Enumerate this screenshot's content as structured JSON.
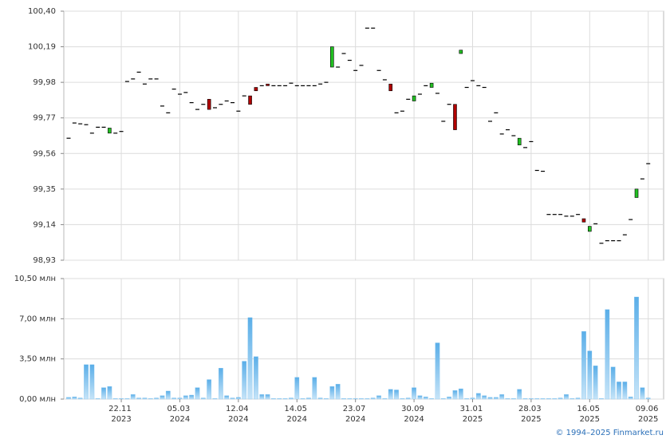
{
  "chart_data": [
    {
      "type": "candlestick",
      "open": [
        99.65,
        99.74,
        99.735,
        99.73,
        99.68,
        99.715,
        99.715,
        99.68,
        99.68,
        99.69,
        99.985,
        100.0,
        100.04,
        99.97,
        100.0,
        100.0,
        99.84,
        99.8,
        99.94,
        99.91,
        99.92,
        99.86,
        99.82,
        99.85,
        99.88,
        99.83,
        99.85,
        99.87,
        99.86,
        99.81,
        99.9,
        99.9,
        99.95,
        99.96,
        99.97,
        99.96,
        99.96,
        99.96,
        99.975,
        99.96,
        99.96,
        99.96,
        99.96,
        99.97,
        99.98,
        100.07,
        100.07,
        100.15,
        100.11,
        100.05,
        100.08,
        100.3,
        100.3,
        100.05,
        99.995,
        99.97,
        99.8,
        99.81,
        99.88,
        99.87,
        99.91,
        99.96,
        99.95,
        99.915,
        99.75,
        99.85,
        99.85,
        100.15,
        99.95,
        99.99,
        99.96,
        99.95,
        99.75,
        99.8,
        99.675,
        99.7,
        99.665,
        99.61,
        99.595,
        99.63,
        99.46,
        99.455,
        99.2,
        99.2,
        99.2,
        99.19,
        99.19,
        99.2,
        99.175,
        99.1,
        99.145,
        99.03,
        99.045,
        99.045,
        99.045,
        99.08,
        99.17,
        99.3,
        99.41,
        99.5
      ],
      "close": [
        99.65,
        99.74,
        99.735,
        99.73,
        99.68,
        99.715,
        99.715,
        99.71,
        99.68,
        99.69,
        99.985,
        100.0,
        100.04,
        99.97,
        100.0,
        100.0,
        99.84,
        99.8,
        99.94,
        99.91,
        99.92,
        99.86,
        99.82,
        99.85,
        99.82,
        99.83,
        99.85,
        99.87,
        99.86,
        99.81,
        99.9,
        99.85,
        99.93,
        99.96,
        99.96,
        99.96,
        99.96,
        99.96,
        99.975,
        99.96,
        99.96,
        99.96,
        99.96,
        99.97,
        99.98,
        100.19,
        100.07,
        100.15,
        100.11,
        100.05,
        100.08,
        100.3,
        100.3,
        100.05,
        99.995,
        99.93,
        99.8,
        99.81,
        99.88,
        99.9,
        99.91,
        99.96,
        99.975,
        99.915,
        99.75,
        99.85,
        99.7,
        100.17,
        99.95,
        99.99,
        99.96,
        99.95,
        99.75,
        99.8,
        99.675,
        99.7,
        99.665,
        99.65,
        99.595,
        99.63,
        99.46,
        99.455,
        99.2,
        99.2,
        99.2,
        99.19,
        99.19,
        99.2,
        99.155,
        99.13,
        99.145,
        99.03,
        99.045,
        99.045,
        99.045,
        99.08,
        99.17,
        99.35,
        99.41,
        99.5
      ],
      "up_color": "#22c022",
      "down_color": "#b00000",
      "color": "#000000",
      "ylim": [
        98.93,
        100.4
      ],
      "yticks": [
        {
          "value": 98.93,
          "label": "98,93"
        },
        {
          "value": 99.14,
          "label": "99,14"
        },
        {
          "value": 99.35,
          "label": "99,35"
        },
        {
          "value": 99.56,
          "label": "99,56"
        },
        {
          "value": 99.77,
          "label": "99,77"
        },
        {
          "value": 99.98,
          "label": "99,98"
        },
        {
          "value": 100.19,
          "label": "100,19"
        },
        {
          "value": 100.4,
          "label": "100,40"
        }
      ],
      "grid": true
    },
    {
      "type": "bar",
      "categories": [
        null,
        null,
        null,
        null,
        null,
        null,
        null,
        null,
        null,
        "22.11 2023",
        null,
        null,
        null,
        null,
        null,
        null,
        null,
        null,
        null,
        "05.03 2024",
        null,
        null,
        null,
        null,
        null,
        null,
        null,
        null,
        null,
        "12.04 2024",
        null,
        null,
        null,
        null,
        null,
        null,
        null,
        null,
        null,
        "14.05 2024",
        null,
        null,
        null,
        null,
        null,
        null,
        null,
        null,
        null,
        "23.07 2024",
        null,
        null,
        null,
        null,
        null,
        null,
        null,
        null,
        null,
        "30.09 2024",
        null,
        null,
        null,
        null,
        null,
        null,
        null,
        null,
        null,
        "31.01 2025",
        null,
        null,
        null,
        null,
        null,
        null,
        null,
        null,
        null,
        "28.03 2025",
        null,
        null,
        null,
        null,
        null,
        null,
        null,
        null,
        null,
        "16.05 2025",
        null,
        null,
        null,
        null,
        null,
        null,
        null,
        null,
        null,
        "09.06 2025"
      ],
      "values": [
        0.15,
        0.2,
        0.1,
        3.0,
        3.0,
        0.05,
        1.0,
        1.1,
        0.05,
        0.05,
        0.05,
        0.4,
        0.1,
        0.1,
        0.05,
        0.1,
        0.3,
        0.7,
        0.1,
        0.1,
        0.3,
        0.35,
        1.0,
        0.1,
        1.7,
        0.05,
        2.7,
        0.3,
        0.1,
        0.15,
        3.3,
        7.1,
        3.7,
        0.4,
        0.4,
        0.05,
        0.05,
        0.05,
        0.1,
        1.9,
        0.05,
        0.1,
        1.9,
        0.1,
        0.05,
        1.1,
        1.3,
        0.05,
        0.05,
        0.05,
        0.05,
        0.05,
        0.1,
        0.3,
        0.05,
        0.85,
        0.8,
        0.05,
        0.1,
        1.0,
        0.3,
        0.2,
        0.05,
        4.9,
        0.05,
        0.2,
        0.75,
        0.9,
        0.05,
        0.1,
        0.5,
        0.3,
        0.15,
        0.15,
        0.4,
        0.05,
        0.05,
        0.85,
        0.05,
        0.05,
        0.05,
        0.05,
        0.05,
        0.05,
        0.1,
        0.4,
        0.05,
        0.1,
        5.9,
        4.2,
        2.9,
        0.05,
        7.8,
        2.8,
        1.5,
        1.5,
        0.2,
        8.9,
        1.0,
        0.1
      ],
      "color": "#7cc0ee",
      "ylim": [
        0,
        10.5
      ],
      "yticks": [
        {
          "value": 0,
          "label": "0,00 млн"
        },
        {
          "value": 3.5,
          "label": "3,50 млн"
        },
        {
          "value": 7,
          "label": "7,00 млн"
        },
        {
          "value": 10.5,
          "label": "10,50 млн"
        }
      ],
      "grid": true
    }
  ],
  "footer": "© 1994–2025 Finmarket.ru"
}
